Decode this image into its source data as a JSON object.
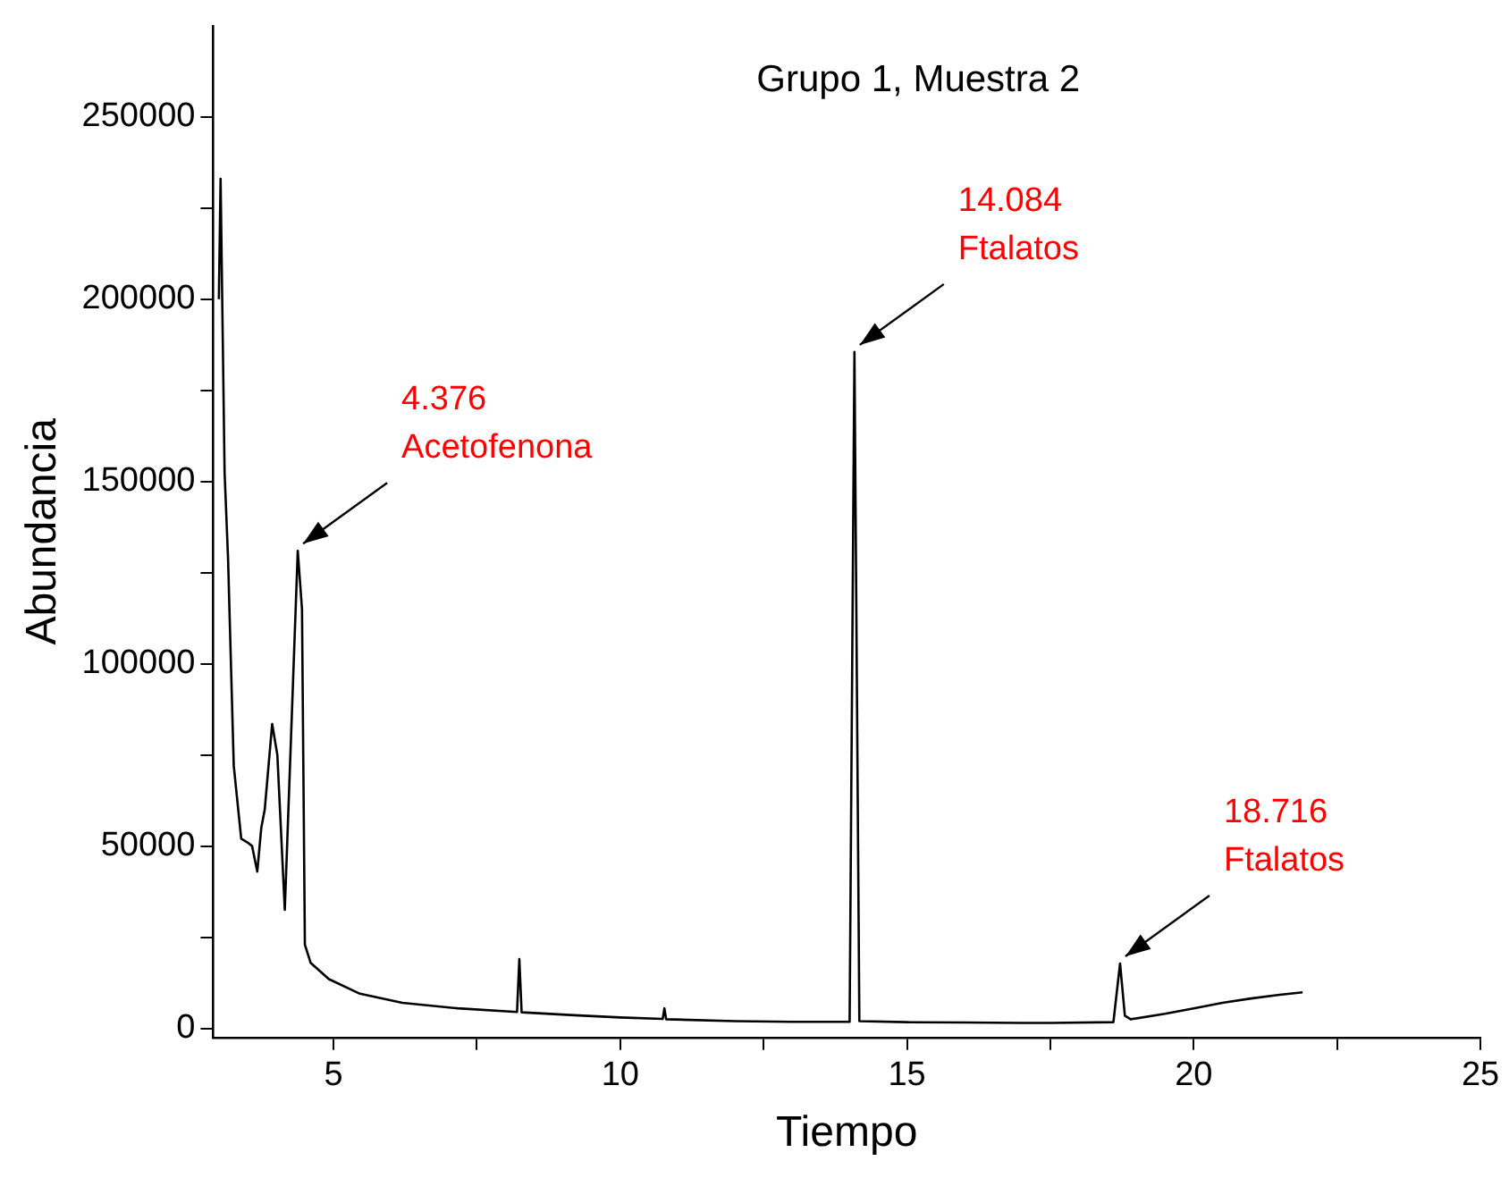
{
  "chart_data": {
    "type": "line",
    "title": "Grupo 1, Muestra 2",
    "xlabel": "Tiempo",
    "ylabel": "Abundancia",
    "series": [
      {
        "color": "#000000",
        "x": [
          3.0,
          3.03,
          3.1,
          3.16,
          3.26,
          3.39,
          3.5,
          3.58,
          3.67,
          3.74,
          3.8,
          3.93,
          4.02,
          4.15,
          4.376,
          4.45,
          4.5,
          4.6,
          4.92,
          5.46,
          6.2,
          7.16,
          8.2,
          8.24,
          8.28,
          9.2,
          10.0,
          10.74,
          10.77,
          10.8,
          12.0,
          13.0,
          14.0,
          14.084,
          14.17,
          15.0,
          16.0,
          17.0,
          17.5,
          18.6,
          18.716,
          18.8,
          18.9,
          19.5,
          20.0,
          20.5,
          21.0,
          21.5,
          21.9
        ],
        "values": [
          200000,
          233000,
          152500,
          129000,
          72000,
          52000,
          51000,
          50000,
          43000,
          55000,
          60000,
          83500,
          75000,
          32500,
          131000,
          115000,
          23000,
          18000,
          13500,
          9500,
          7000,
          5500,
          4500,
          19000,
          4400,
          3600,
          3000,
          2600,
          5500,
          2500,
          2000,
          1800,
          1800,
          185500,
          2000,
          1700,
          1600,
          1500,
          1500,
          1700,
          17800,
          3500,
          2500,
          4000,
          5500,
          7000,
          8200,
          9200,
          9900
        ]
      }
    ],
    "xlim": [
      2.9,
      25
    ],
    "xticks": [
      5,
      {
        "value": 7.5,
        "label": null
      },
      10,
      {
        "value": 12.5,
        "label": null
      },
      15,
      {
        "value": 17.5,
        "label": null
      },
      20,
      {
        "value": 22.5,
        "label": null
      },
      25
    ],
    "ylim": [
      -2500,
      275000
    ],
    "yticks": [
      0,
      {
        "value": 25000,
        "label": null
      },
      50000,
      {
        "value": 75000,
        "label": null
      },
      100000,
      {
        "value": 125000,
        "label": null
      },
      150000,
      {
        "value": 175000,
        "label": null
      },
      200000,
      {
        "value": 225000,
        "label": null
      },
      250000
    ],
    "annotations": [
      {
        "text": "4.376\nAcetofenona",
        "x": 4.376,
        "y": 131000
      },
      {
        "text": "14.084\nFtalatos",
        "x": 14.084,
        "y": 185500
      },
      {
        "text": "18.716\nFtalatos",
        "x": 18.716,
        "y": 17800
      }
    ],
    "grid": false,
    "legend": false,
    "marker": "none",
    "line_style": "solid"
  }
}
